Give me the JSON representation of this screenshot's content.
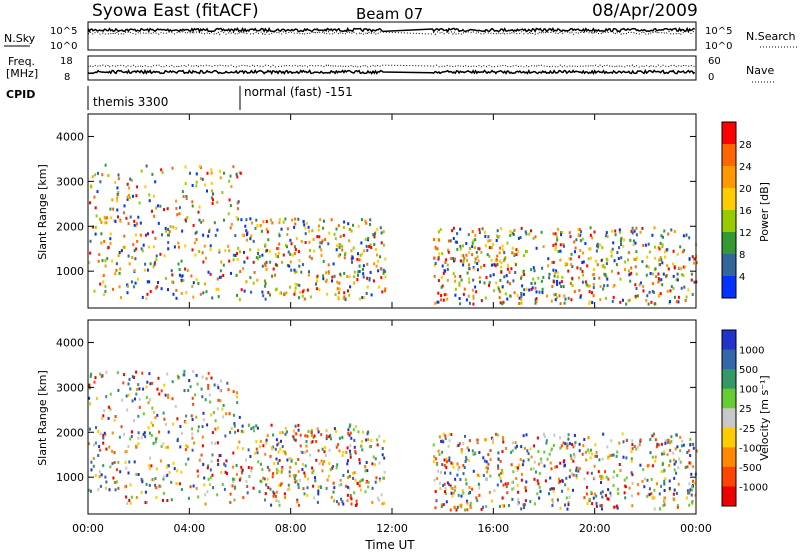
{
  "header": {
    "station": "Syowa East (fitACF)",
    "beam": "Beam 07",
    "date": "08/Apr/2009"
  },
  "top_panels": {
    "nsky_label": "N.Sky",
    "nsearch_label": "N.Search",
    "nsky_ticks": [
      "10^5",
      "10^0"
    ],
    "nsearch_ticks": [
      "10^5",
      "10^0"
    ],
    "freq_label_line1": "Freq.",
    "freq_label_line2": "[MHz]",
    "freq_ticks": [
      "18",
      "8"
    ],
    "nave_label": "Nave",
    "nave_ticks": [
      "60",
      "0"
    ],
    "cpid_label": "CPID",
    "cpid_segments": [
      {
        "name": "themis 3300",
        "start_hour": 0,
        "end_hour": 6
      },
      {
        "name": "normal (fast) -151",
        "start_hour": 6,
        "end_hour": 24
      }
    ]
  },
  "colorbars": {
    "power": {
      "label": "Power [dB]",
      "ticks": [
        "28",
        "24",
        "20",
        "16",
        "12",
        "8",
        "4"
      ],
      "colors": [
        "#ff0000",
        "#ff6600",
        "#ff9900",
        "#ffcc00",
        "#99cc00",
        "#339933",
        "#336699",
        "#0033ff"
      ]
    },
    "velocity": {
      "label": "Velocity [m s⁻¹]",
      "ticks": [
        "1000",
        "500",
        "100",
        "25",
        "-25",
        "-100",
        "-500",
        "-1000"
      ],
      "colors": [
        "#2233cc",
        "#3366aa",
        "#339966",
        "#66cc33",
        "#c8c8c8",
        "#ffcc00",
        "#ff8800",
        "#ff4400",
        "#ee0000"
      ]
    }
  },
  "chart_data": [
    {
      "type": "heatmap",
      "panel": "power",
      "ylabel": "Slant Range [km]",
      "xlabel": "",
      "x_ticks": [
        "00:00",
        "04:00",
        "08:00",
        "12:00",
        "16:00",
        "20:00",
        "00:00"
      ],
      "y_ticks": [
        "4000",
        "3000",
        "2000",
        "1000"
      ],
      "xlim_hours": [
        0,
        24
      ],
      "ylim_km": [
        180,
        4500
      ],
      "data_gaps_hours": [
        [
          11.7,
          13.6
        ]
      ],
      "colorscale_db": [
        0,
        30
      ]
    },
    {
      "type": "heatmap",
      "panel": "velocity",
      "ylabel": "Slant Range [km]",
      "xlabel": "Time UT",
      "x_ticks": [
        "00:00",
        "04:00",
        "08:00",
        "12:00",
        "16:00",
        "20:00",
        "00:00"
      ],
      "y_ticks": [
        "4000",
        "3000",
        "2000",
        "1000"
      ],
      "xlim_hours": [
        0,
        24
      ],
      "ylim_km": [
        180,
        4500
      ],
      "data_gaps_hours": [
        [
          11.7,
          13.6
        ]
      ],
      "colorscale_ms": [
        -1000,
        1000
      ]
    }
  ]
}
